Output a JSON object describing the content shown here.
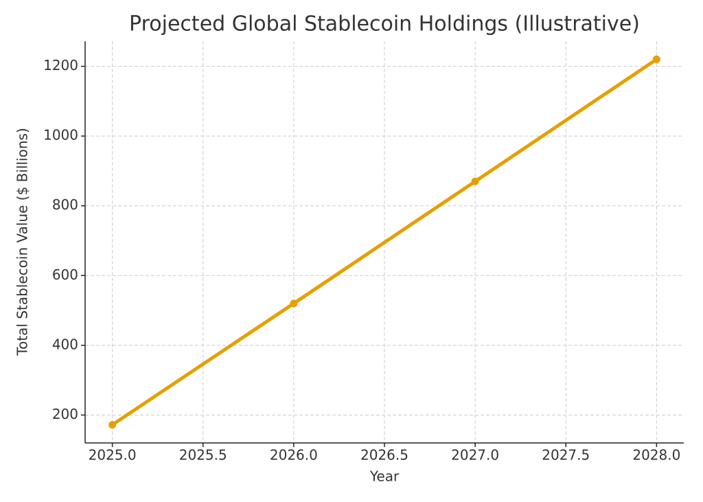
{
  "chart_data": {
    "type": "line",
    "title": "Projected Global Stablecoin Holdings (Illustrative)",
    "x_label": "Year",
    "y_label": "Total Stablecoin Value ($ Billions)",
    "x": [
      2025,
      2026,
      2027,
      2028
    ],
    "series": [
      {
        "name": "Total Stablecoin Value",
        "color": "#e69f00",
        "values": [
          172,
          520,
          870,
          1220
        ]
      }
    ],
    "xlim": [
      2024.85,
      2028.15
    ],
    "xticks": [
      {
        "value": 2025,
        "label": "2025.0"
      },
      {
        "value": 2025.5,
        "label": "2025.5"
      },
      {
        "value": 2026,
        "label": "2026.0"
      },
      {
        "value": 2026.5,
        "label": "2026.5"
      },
      {
        "value": 2027,
        "label": "2027.0"
      },
      {
        "value": 2027.5,
        "label": "2027.5"
      },
      {
        "value": 2028,
        "label": "2028.0"
      }
    ],
    "ylim": [
      120,
      1272
    ],
    "yticks": [
      200,
      400,
      600,
      800,
      1000,
      1200
    ],
    "grid": true
  }
}
